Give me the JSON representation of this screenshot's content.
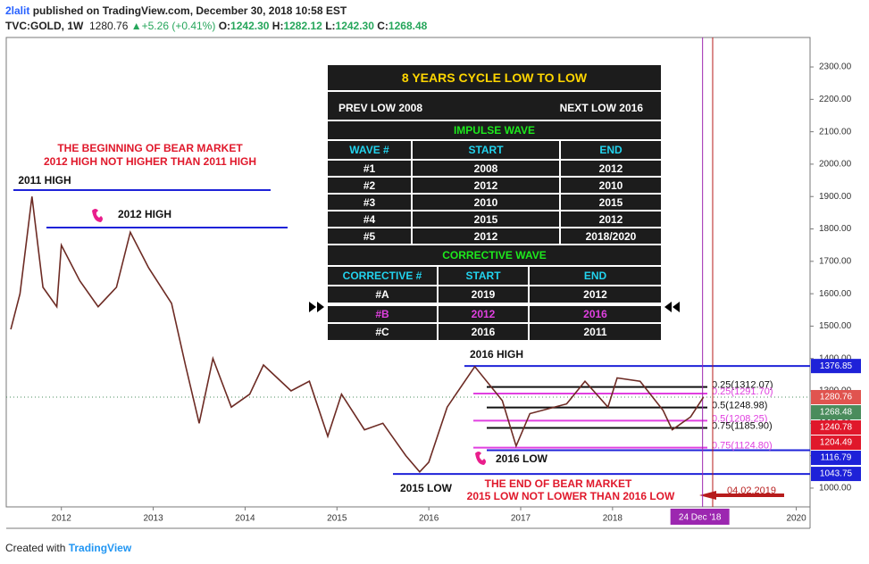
{
  "header": {
    "author": "2lalit",
    "published": "published on TradingView.com, December 30, 2018 10:58 EST",
    "symbol": "TVC:GOLD, 1W",
    "last": "1280.76",
    "change": "+5.26 (+0.41%)",
    "o_label": "O:",
    "o": "1242.30",
    "h_label": "H:",
    "h": "1282.12",
    "l_label": "L:",
    "l": "1242.30",
    "c_label": "C:",
    "c": "1268.48"
  },
  "footer": {
    "created": "Created with",
    "brand": "TradingView"
  },
  "chart_data": {
    "type": "line",
    "color": "#6d2b24",
    "x": [
      2011.45,
      2011.55,
      2011.68,
      2011.8,
      2011.95,
      2012.0,
      2012.2,
      2012.4,
      2012.6,
      2012.75,
      2012.95,
      2013.2,
      2013.35,
      2013.5,
      2013.65,
      2013.85,
      2014.05,
      2014.2,
      2014.5,
      2014.7,
      2014.9,
      2015.05,
      2015.3,
      2015.5,
      2015.75,
      2015.9,
      2016.0,
      2016.2,
      2016.5,
      2016.8,
      2016.95,
      2017.1,
      2017.5,
      2017.7,
      2017.95,
      2018.05,
      2018.3,
      2018.55,
      2018.65,
      2018.85,
      2018.99
    ],
    "values": [
      1490,
      1600,
      1900,
      1620,
      1560,
      1750,
      1640,
      1560,
      1620,
      1790,
      1680,
      1570,
      1380,
      1200,
      1400,
      1250,
      1290,
      1380,
      1300,
      1330,
      1160,
      1290,
      1180,
      1200,
      1100,
      1050,
      1080,
      1250,
      1375,
      1270,
      1130,
      1230,
      1260,
      1330,
      1250,
      1340,
      1330,
      1240,
      1180,
      1220,
      1281
    ],
    "xlim": [
      2011.4,
      2020.15
    ],
    "xticks": [
      2012,
      2013,
      2014,
      2015,
      2016,
      2017,
      2018,
      2020
    ],
    "ylim": [
      942,
      2391
    ],
    "yticks": [
      {
        "value": 1000,
        "label": "1000.00"
      },
      {
        "value": 1100,
        "label": "1100.00"
      },
      {
        "value": 1200,
        "label": "1200.00"
      },
      {
        "value": 1300,
        "label": "1300.00"
      },
      {
        "value": 1400,
        "label": "1400.00"
      },
      {
        "value": 1500,
        "label": "1500.00"
      },
      {
        "value": 1600,
        "label": "1600.00"
      },
      {
        "value": 1700,
        "label": "1700.00"
      },
      {
        "value": 1800,
        "label": "1800.00"
      },
      {
        "value": 1900,
        "label": "1900.00"
      },
      {
        "value": 2000,
        "label": "2000.00"
      },
      {
        "value": 2100,
        "label": "2100.00"
      },
      {
        "value": 2200,
        "label": "2200.00"
      },
      {
        "value": 2300,
        "label": "2300.00"
      }
    ],
    "price_tags": [
      {
        "value": 1376.85,
        "color": "#1e22d8"
      },
      {
        "value": 1280.76,
        "color": "#e0544f"
      },
      {
        "value": 1268.48,
        "color": "#4a8c5c"
      },
      {
        "value": 1240.78,
        "color": "#e0182b"
      },
      {
        "value": 1204.49,
        "color": "#e0182b"
      },
      {
        "value": 1116.79,
        "color": "#1e22d8"
      },
      {
        "value": 1043.75,
        "color": "#1e22d8"
      }
    ],
    "fib": [
      {
        "label": "0.25(1312.07)",
        "value": 1312.07,
        "color": "#111111"
      },
      {
        "label": "0.25(1291.70)",
        "value": 1291.7,
        "color": "#e040e0"
      },
      {
        "label": "0.5(1248.98)",
        "value": 1248.98,
        "color": "#111111"
      },
      {
        "label": "0.5(1208.25)",
        "value": 1208.25,
        "color": "#e040e0"
      },
      {
        "label": "0.75(1185.90)",
        "value": 1185.9,
        "color": "#111111"
      },
      {
        "label": "0.75(1124.80)",
        "value": 1124.8,
        "color": "#e040e0"
      }
    ],
    "vlines": [
      {
        "label": "24 Dec '18",
        "x": 2018.98,
        "color": "#9c27b0"
      },
      {
        "label": "04.02.2019",
        "x": 2019.09,
        "color": "#b71c1c"
      }
    ],
    "annotations": [
      "THE BEGINNING OF BEAR MARKET",
      "2012 HIGH NOT HIGHER THAN 2011 HIGH",
      "2011 HIGH",
      "2012 HIGH",
      "2016 HIGH",
      "2016 LOW",
      "2015 LOW",
      "THE END OF BEAR MARKET",
      "2015 LOW NOT LOWER THAN 2016 LOW"
    ]
  },
  "table": {
    "title": "8 YEARS CYCLE LOW TO LOW",
    "prev": "PREV LOW 2008",
    "next": "NEXT LOW 2016",
    "impulse_title": "IMPULSE WAVE",
    "impulse_header": [
      "WAVE #",
      "START",
      "END"
    ],
    "impulse_rows": [
      [
        "#1",
        "2008",
        "2012"
      ],
      [
        "#2",
        "2012",
        "2010"
      ],
      [
        "#3",
        "2010",
        "2015"
      ],
      [
        "#4",
        "2015",
        "2012"
      ],
      [
        "#5",
        "2012",
        "2018/2020"
      ]
    ],
    "corrective_title": "CORRECTIVE WAVE",
    "corrective_header": [
      "CORRECTIVE #",
      "START",
      "END"
    ],
    "corrective_rows": [
      [
        "#A",
        "2019",
        "2012"
      ],
      [
        "#B",
        "2012",
        "2016"
      ],
      [
        "#C",
        "2016",
        "2011"
      ]
    ]
  }
}
